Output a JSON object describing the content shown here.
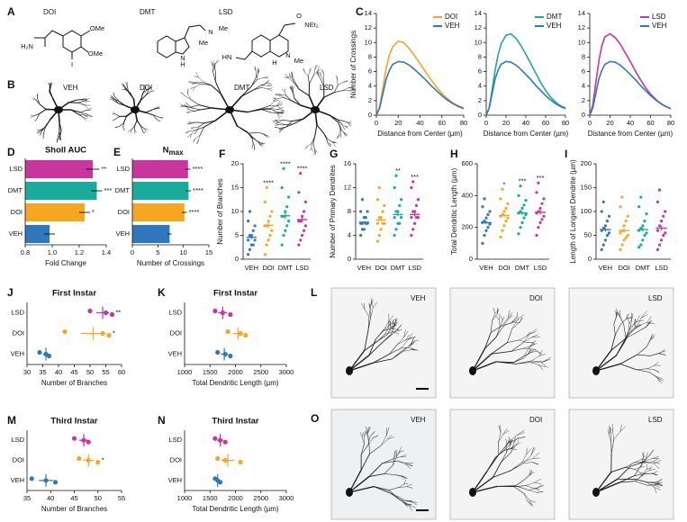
{
  "panel_labels": [
    "A",
    "B",
    "C",
    "D",
    "E",
    "F",
    "G",
    "H",
    "I",
    "J",
    "K",
    "L",
    "M",
    "N",
    "O"
  ],
  "structures": [
    {
      "name": "DOI",
      "atoms": [
        "H₂N",
        "OMe",
        "OMe",
        "I"
      ]
    },
    {
      "name": "DMT",
      "atoms": [
        "N",
        "Me",
        "Me",
        "H",
        "N"
      ]
    },
    {
      "name": "LSD",
      "atoms": [
        "O",
        "NEt₂",
        "HN",
        "H",
        "N",
        "Me"
      ]
    }
  ],
  "neurons": [
    "VEH",
    "DOI",
    "DMT",
    "LSD"
  ],
  "micrographs": {
    "L": [
      "VEH",
      "DOI",
      "LSD"
    ],
    "O": [
      "VEH",
      "DOI",
      "LSD"
    ]
  },
  "chart_data": [
    {
      "type": "line",
      "x_label": "Distance from Center (µm)",
      "y_label": "Number of Crossings",
      "x": [
        0,
        3,
        6,
        9,
        12,
        15,
        20,
        25,
        30,
        35,
        40,
        45,
        50,
        55,
        60,
        65,
        70,
        75,
        80
      ],
      "xlim": [
        0,
        80
      ],
      "xticks": [
        0,
        20,
        40,
        60,
        80
      ],
      "ylim": [
        0,
        14
      ],
      "yticks": [
        0,
        2,
        4,
        6,
        8,
        10,
        12,
        14
      ],
      "legend": "upper right",
      "series": [
        {
          "name": "DOI",
          "color": "#f5a623",
          "values": [
            0,
            1.2,
            3.8,
            6.5,
            8.3,
            9.4,
            10.2,
            10.0,
            9.2,
            8.2,
            7.1,
            6.0,
            4.9,
            3.9,
            3.0,
            2.3,
            1.7,
            1.3,
            1.0
          ]
        },
        {
          "name": "VEH",
          "color": "#2f78bd",
          "values": [
            0,
            1.0,
            3.0,
            5.0,
            6.2,
            7.0,
            7.4,
            7.3,
            6.9,
            6.3,
            5.6,
            4.9,
            4.1,
            3.4,
            2.7,
            2.1,
            1.6,
            1.2,
            0.9
          ]
        }
      ]
    },
    {
      "type": "line",
      "x_label": "Distance from Center (µm)",
      "x": [
        0,
        3,
        6,
        9,
        12,
        15,
        20,
        25,
        30,
        35,
        40,
        45,
        50,
        55,
        60,
        65,
        70,
        75,
        80
      ],
      "xlim": [
        0,
        80
      ],
      "xticks": [
        0,
        20,
        40,
        60,
        80
      ],
      "ylim": [
        0,
        14
      ],
      "yticks": [
        0,
        2,
        4,
        6,
        8,
        10,
        12,
        14
      ],
      "legend": "upper right",
      "series": [
        {
          "name": "DMT",
          "color": "#1aab9b",
          "values": [
            0,
            1.0,
            3.5,
            6.2,
            8.3,
            9.8,
            11.0,
            11.2,
            10.6,
            9.6,
            8.4,
            7.1,
            5.8,
            4.5,
            3.4,
            2.5,
            1.8,
            1.3,
            1.0
          ]
        },
        {
          "name": "VEH",
          "color": "#2f78bd",
          "values": [
            0,
            1.0,
            3.0,
            5.0,
            6.2,
            7.0,
            7.4,
            7.3,
            6.9,
            6.3,
            5.6,
            4.9,
            4.1,
            3.4,
            2.7,
            2.1,
            1.6,
            1.2,
            0.9
          ]
        }
      ]
    },
    {
      "type": "line",
      "x_label": "Distance from Center (µm)",
      "x": [
        0,
        3,
        6,
        9,
        12,
        15,
        20,
        25,
        30,
        35,
        40,
        45,
        50,
        55,
        60,
        65,
        70,
        75,
        80
      ],
      "xlim": [
        0,
        80
      ],
      "xticks": [
        0,
        20,
        40,
        60,
        80
      ],
      "ylim": [
        0,
        14
      ],
      "yticks": [
        0,
        2,
        4,
        6,
        8,
        10,
        12,
        14
      ],
      "legend": "upper right",
      "series": [
        {
          "name": "LSD",
          "color": "#c8359f",
          "values": [
            0,
            1.4,
            4.5,
            7.5,
            9.6,
            10.8,
            11.2,
            10.7,
            9.8,
            8.6,
            7.4,
            6.1,
            4.9,
            3.8,
            2.9,
            2.2,
            1.6,
            1.2,
            0.9
          ]
        },
        {
          "name": "VEH",
          "color": "#2f78bd",
          "values": [
            0,
            1.0,
            3.0,
            5.0,
            6.2,
            7.0,
            7.4,
            7.3,
            6.9,
            6.3,
            5.6,
            4.9,
            4.1,
            3.4,
            2.7,
            2.1,
            1.6,
            1.2,
            0.9
          ]
        }
      ]
    },
    {
      "type": "hbar",
      "title": "Sholl AUC",
      "x_label": "Fold Change",
      "categories": [
        "LSD",
        "DMT",
        "DOI",
        "VEH"
      ],
      "colors": [
        "#c8359f",
        "#1aab9b",
        "#f5a623",
        "#2f78bd"
      ],
      "values": [
        1.3,
        1.33,
        1.24,
        0.98
      ],
      "errors": [
        0.05,
        0.04,
        0.04,
        0.04
      ],
      "annotations": [
        "**",
        "***",
        "*",
        null
      ],
      "xlim": [
        0.8,
        1.4
      ],
      "xticks": [
        0.8,
        {
          "value": 1,
          "label": "1.0"
        },
        1.2,
        1.4
      ]
    },
    {
      "type": "hbar",
      "title": "N",
      "title_subscript": "max",
      "x_label": "Number of Crossings",
      "categories": [
        "LSD",
        "DMT",
        "DOI",
        "VEH"
      ],
      "colors": [
        "#c8359f",
        "#1aab9b",
        "#f5a623",
        "#2f78bd"
      ],
      "values": [
        10.9,
        11.0,
        10.2,
        7.3
      ],
      "errors": [
        0.5,
        0.5,
        0.5,
        0.4
      ],
      "annotations": [
        "****",
        "****",
        "****",
        null
      ],
      "xlim": [
        0,
        15
      ],
      "xticks": [
        0,
        5,
        10,
        15
      ]
    },
    {
      "type": "strip",
      "y_label": "Number of Branches",
      "ylim": [
        0,
        20
      ],
      "yticks": [
        0,
        5,
        10,
        15,
        20
      ],
      "groups": [
        {
          "name": "VEH",
          "color": "#2f78bd",
          "points": [
            1,
            2,
            3,
            3,
            4,
            4,
            5,
            5,
            6,
            7,
            8,
            10
          ],
          "mean": 4.6,
          "sem": 0.4,
          "annotation": null
        },
        {
          "name": "DOI",
          "color": "#f5a623",
          "points": [
            1,
            3,
            4,
            5,
            6,
            7,
            7,
            8,
            9,
            10,
            12,
            15
          ],
          "mean": 7.1,
          "sem": 0.6,
          "annotation": "****"
        },
        {
          "name": "DMT",
          "color": "#1aab9b",
          "points": [
            3,
            5,
            6,
            7,
            8,
            9,
            9,
            10,
            11,
            13,
            15,
            19
          ],
          "mean": 9.1,
          "sem": 0.6,
          "annotation": "****"
        },
        {
          "name": "LSD",
          "color": "#c8359f",
          "points": [
            3,
            4,
            5,
            6,
            7,
            8,
            8,
            9,
            10,
            12,
            14,
            18
          ],
          "mean": 8.3,
          "sem": 0.6,
          "annotation": "****"
        }
      ]
    },
    {
      "type": "strip",
      "y_label": "Number of Primary Dendrites",
      "ylim": [
        0,
        16
      ],
      "yticks": [
        0,
        4,
        8,
        12,
        16
      ],
      "groups": [
        {
          "name": "VEH",
          "color": "#2f78bd",
          "points": [
            4,
            5,
            5,
            6,
            6,
            6,
            6,
            7,
            7,
            8,
            8,
            10
          ],
          "mean": 6.2,
          "sem": 0.2,
          "annotation": null
        },
        {
          "name": "DOI",
          "color": "#f5a623",
          "points": [
            3,
            4,
            5,
            6,
            6,
            6,
            7,
            7,
            8,
            9,
            10,
            12
          ],
          "mean": 6.6,
          "sem": 0.3,
          "annotation": null
        },
        {
          "name": "DMT",
          "color": "#1aab9b",
          "points": [
            4,
            5,
            6,
            6,
            7,
            7,
            8,
            8,
            9,
            10,
            12,
            14
          ],
          "mean": 7.5,
          "sem": 0.3,
          "annotation": "**"
        },
        {
          "name": "LSD",
          "color": "#c8359f",
          "points": [
            4,
            5,
            6,
            7,
            7,
            7,
            8,
            8,
            9,
            10,
            12,
            13
          ],
          "mean": 7.5,
          "sem": 0.3,
          "annotation": "***"
        }
      ]
    },
    {
      "type": "strip",
      "y_label": "Total Dendritic Length (µm)",
      "ylim": [
        0,
        600
      ],
      "yticks": [
        0,
        200,
        400,
        600
      ],
      "groups": [
        {
          "name": "VEH",
          "color": "#2f78bd",
          "points": [
            100,
            150,
            180,
            200,
            220,
            230,
            240,
            260,
            280,
            300,
            330,
            380
          ],
          "mean": 230,
          "sem": 10,
          "annotation": null
        },
        {
          "name": "DOI",
          "color": "#f5a623",
          "points": [
            140,
            180,
            210,
            240,
            260,
            270,
            280,
            300,
            320,
            350,
            380,
            440
          ],
          "mean": 275,
          "sem": 12,
          "annotation": "*"
        },
        {
          "name": "DMT",
          "color": "#1aab9b",
          "points": [
            160,
            200,
            230,
            260,
            280,
            290,
            300,
            320,
            340,
            370,
            400,
            460
          ],
          "mean": 290,
          "sem": 11,
          "annotation": "***"
        },
        {
          "name": "LSD",
          "color": "#c8359f",
          "points": [
            150,
            200,
            230,
            250,
            270,
            290,
            300,
            320,
            350,
            380,
            420,
            480
          ],
          "mean": 295,
          "sem": 12,
          "annotation": "***"
        }
      ]
    },
    {
      "type": "strip",
      "y_label": "Length of Longest Dendrite (µm)",
      "ylim": [
        0,
        200
      ],
      "yticks": [
        0,
        50,
        100,
        150,
        200
      ],
      "groups": [
        {
          "name": "VEH",
          "color": "#2f78bd",
          "points": [
            20,
            30,
            40,
            50,
            55,
            60,
            65,
            70,
            80,
            90,
            100,
            120
          ],
          "mean": 62,
          "sem": 4,
          "annotation": null
        },
        {
          "name": "DOI",
          "color": "#f5a623",
          "points": [
            20,
            30,
            40,
            45,
            50,
            55,
            60,
            70,
            80,
            90,
            110,
            130
          ],
          "mean": 60,
          "sem": 4,
          "annotation": null
        },
        {
          "name": "DMT",
          "color": "#1aab9b",
          "points": [
            25,
            30,
            40,
            50,
            55,
            60,
            65,
            70,
            80,
            95,
            110,
            130
          ],
          "mean": 62,
          "sem": 4,
          "annotation": null
        },
        {
          "name": "LSD",
          "color": "#c8359f",
          "points": [
            20,
            30,
            40,
            50,
            55,
            60,
            70,
            80,
            90,
            100,
            120,
            145
          ],
          "mean": 65,
          "sem": 5,
          "annotation": null
        }
      ]
    },
    {
      "type": "hstrip",
      "title": "First Instar",
      "x_label": "Number of Branches",
      "xlim": [
        30,
        60
      ],
      "xticks": [
        30,
        35,
        40,
        45,
        50,
        55,
        60
      ],
      "groups": [
        {
          "name": "LSD",
          "color": "#c8359f",
          "points": [
            50,
            55,
            57
          ],
          "mean": 54,
          "sem": 2,
          "annotation": "**"
        },
        {
          "name": "DOI",
          "color": "#f5a623",
          "points": [
            42,
            54,
            56
          ],
          "mean": 51,
          "sem": 4,
          "annotation": "*"
        },
        {
          "name": "VEH",
          "color": "#2f78bd",
          "points": [
            34,
            36,
            37
          ],
          "mean": 36,
          "sem": 1,
          "annotation": null
        }
      ]
    },
    {
      "type": "hstrip",
      "title": "First Instar",
      "x_label": "Total Dendritic Length (µm)",
      "xlim": [
        1000,
        3000
      ],
      "xticks": [
        1000,
        1500,
        2000,
        2500,
        3000
      ],
      "groups": [
        {
          "name": "LSD",
          "color": "#c8359f",
          "points": [
            1600,
            1750,
            1900
          ],
          "mean": 1750,
          "sem": 90,
          "annotation": null
        },
        {
          "name": "DOI",
          "color": "#f5a623",
          "points": [
            1850,
            2100,
            2200
          ],
          "mean": 2050,
          "sem": 100,
          "annotation": null
        },
        {
          "name": "VEH",
          "color": "#2f78bd",
          "points": [
            1650,
            1800,
            1900
          ],
          "mean": 1780,
          "sem": 70,
          "annotation": null
        }
      ]
    },
    {
      "type": "hstrip",
      "title": "Third Instar",
      "x_label": "Number of Branches",
      "xlim": [
        35,
        55
      ],
      "xticks": [
        35,
        40,
        45,
        50,
        55
      ],
      "groups": [
        {
          "name": "LSD",
          "color": "#c8359f",
          "points": [
            45,
            47,
            48
          ],
          "mean": 47,
          "sem": 1,
          "annotation": null
        },
        {
          "name": "DOI",
          "color": "#f5a623",
          "points": [
            46,
            48,
            50
          ],
          "mean": 48,
          "sem": 1.2,
          "annotation": "*"
        },
        {
          "name": "VEH",
          "color": "#2f78bd",
          "points": [
            36,
            39,
            41
          ],
          "mean": 39,
          "sem": 1.5,
          "annotation": null
        }
      ]
    },
    {
      "type": "hstrip",
      "title": "Third Instar",
      "x_label": "Total Dendritic Length (µm)",
      "xlim": [
        1000,
        3000
      ],
      "xticks": [
        1000,
        1500,
        2000,
        2500,
        3000
      ],
      "groups": [
        {
          "name": "LSD",
          "color": "#c8359f",
          "points": [
            1600,
            1700,
            1800
          ],
          "mean": 1700,
          "sem": 60,
          "annotation": null
        },
        {
          "name": "DOI",
          "color": "#f5a623",
          "points": [
            1650,
            1800,
            2100
          ],
          "mean": 1850,
          "sem": 130,
          "annotation": null
        },
        {
          "name": "VEH",
          "color": "#2f78bd",
          "points": [
            1600,
            1650,
            1700
          ],
          "mean": 1650,
          "sem": 30,
          "annotation": null
        }
      ]
    }
  ]
}
